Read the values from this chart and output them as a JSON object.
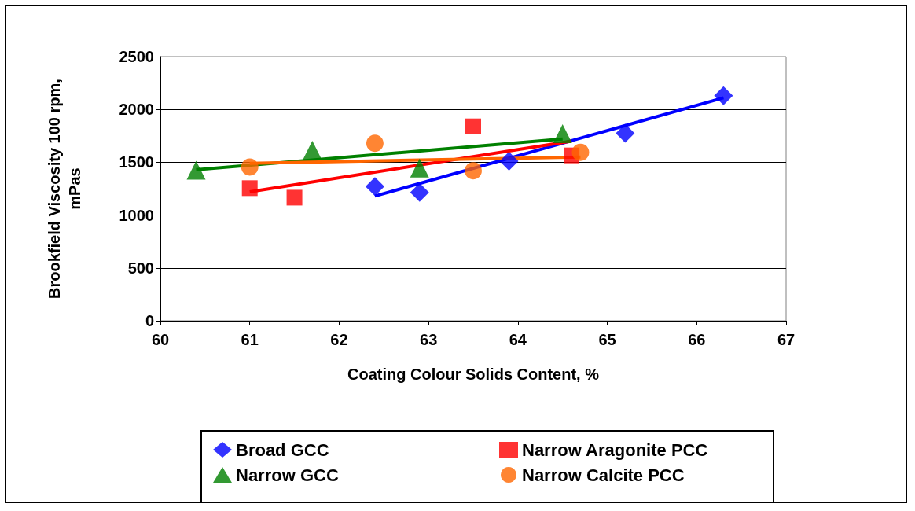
{
  "chart_data": {
    "type": "scatter",
    "xlabel": "Coating Colour Solids Content, %",
    "ylabel": "Brookfield Viscosity 100 rpm,\nmPas",
    "xlim": [
      60,
      67
    ],
    "xticks": [
      60,
      61,
      62,
      63,
      64,
      65,
      66,
      67
    ],
    "ylim": [
      0,
      2500
    ],
    "yticks": [
      0,
      500,
      1000,
      1500,
      2000,
      2500
    ],
    "grid": "y",
    "legend": "bottom",
    "series": [
      {
        "name": "Broad GCC",
        "color": "#0000ff",
        "marker": "diamond",
        "x": [
          62.4,
          62.9,
          63.9,
          65.2,
          66.3
        ],
        "values": [
          1270,
          1215,
          1510,
          1775,
          2130
        ]
      },
      {
        "name": "Narrow Aragonite PCC",
        "color": "#ff0000",
        "marker": "square",
        "x": [
          61.0,
          61.5,
          63.5,
          64.6
        ],
        "values": [
          1255,
          1165,
          1840,
          1565
        ]
      },
      {
        "name": "Narrow GCC",
        "color": "#008000",
        "marker": "triangle",
        "x": [
          60.4,
          61.7,
          62.9,
          64.5
        ],
        "values": [
          1425,
          1615,
          1445,
          1770
        ]
      },
      {
        "name": "Narrow Calcite PCC",
        "color": "#ff6600",
        "marker": "circle",
        "x": [
          61.0,
          62.4,
          63.5,
          64.7
        ],
        "values": [
          1455,
          1680,
          1420,
          1595
        ]
      },
      {
        "type": "line",
        "color": "#0000ff",
        "marker": "none",
        "x": [
          62.4,
          66.3
        ],
        "values": [
          1180,
          2110
        ]
      },
      {
        "type": "line",
        "color": "#ff0000",
        "marker": "none",
        "x": [
          61.0,
          64.6
        ],
        "values": [
          1220,
          1700
        ]
      },
      {
        "type": "line",
        "color": "#008000",
        "marker": "none",
        "x": [
          60.4,
          64.5
        ],
        "values": [
          1430,
          1720
        ]
      },
      {
        "type": "line",
        "color": "#ff6600",
        "marker": "none",
        "x": [
          61.0,
          64.7
        ],
        "values": [
          1490,
          1550
        ]
      }
    ]
  }
}
